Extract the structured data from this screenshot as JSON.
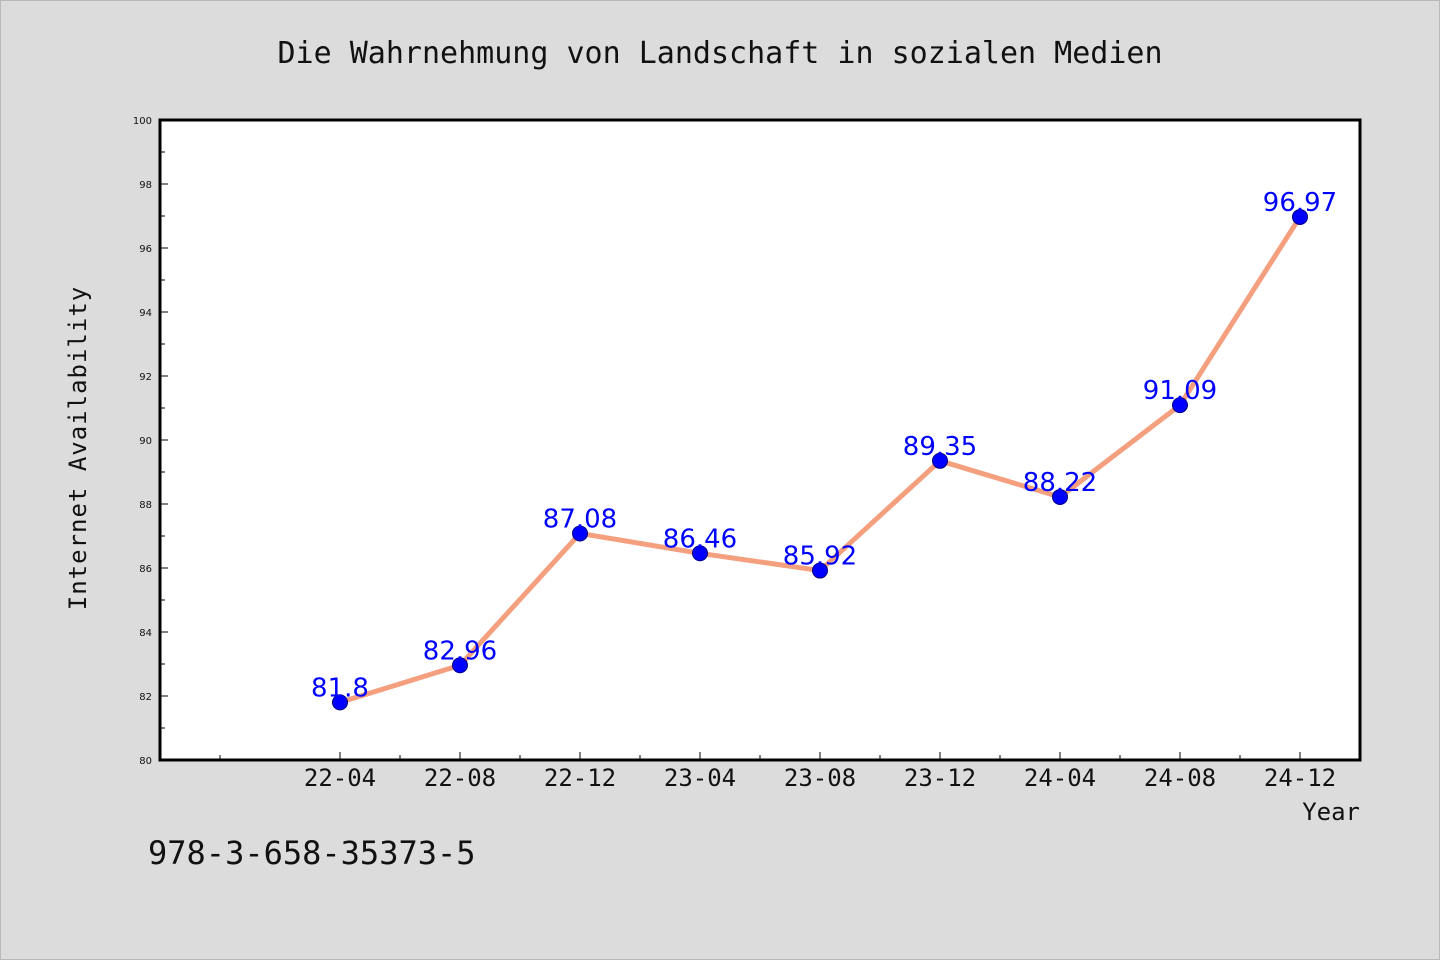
{
  "chart_data": {
    "type": "line",
    "title": "Die Wahrnehmung von Landschaft in sozialen Medien",
    "xlabel": "Year",
    "ylabel": "Internet Availability",
    "categories": [
      "22-04",
      "22-08",
      "22-12",
      "23-04",
      "23-08",
      "23-12",
      "24-04",
      "24-08",
      "24-12"
    ],
    "series": [
      {
        "values": [
          81.8,
          82.96,
          87.08,
          86.46,
          85.92,
          89.35,
          88.22,
          91.09,
          96.97
        ],
        "data_labels": [
          "81.8",
          "82.96",
          "87.08",
          "86.46",
          "85.92",
          "89.35",
          "88.22",
          "91.09",
          "96.97"
        ],
        "line_color": "#f4a07f",
        "marker_color": "#0000ff"
      }
    ],
    "ylim": [
      80,
      100
    ],
    "yticks": [
      "80",
      "82",
      "84",
      "86",
      "88",
      "90",
      "92",
      "94",
      "96",
      "98",
      "100"
    ],
    "grid": false,
    "legend": "none"
  },
  "footer": {
    "isbn": "978-3-658-35373-5"
  }
}
